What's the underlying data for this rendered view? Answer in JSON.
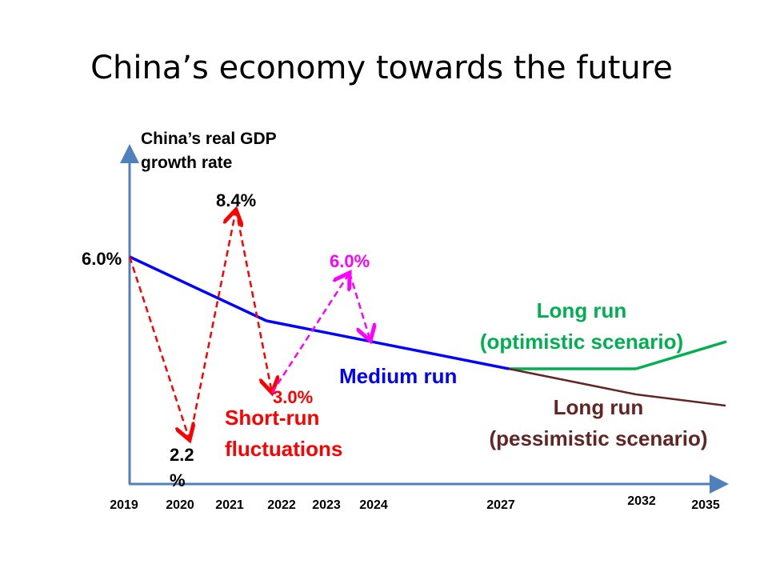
{
  "title": "China’s economy towards the future",
  "chart_data": {
    "type": "line",
    "title": "China’s economy towards the future",
    "ylabel": [
      "China’s real GDP",
      "growth rate"
    ],
    "xlabel": "",
    "x_ticks": [
      "2019",
      "2020",
      "2021",
      "2022",
      "2023",
      "2024",
      "2027",
      "2032",
      "2035"
    ],
    "grid": false,
    "series": [
      {
        "name": "Short-run fluctuations",
        "style": "dashed-arrows",
        "color": "#ff0000",
        "points": [
          {
            "x": "2019",
            "label": "6.0%"
          },
          {
            "x": "2020",
            "label": "2.2 %"
          },
          {
            "x": "2021",
            "label": "8.4%"
          },
          {
            "x": "2022",
            "label": "3.0%"
          }
        ]
      },
      {
        "style": "dashed-arrows",
        "color": "#ff00ff",
        "points": [
          {
            "x": "2022",
            "label": "3.0%"
          },
          {
            "x": "2023",
            "label": "6.0%"
          },
          {
            "x": "2024"
          }
        ]
      },
      {
        "name": "Medium run",
        "style": "solid",
        "color": "#0000ff",
        "points": [
          {
            "x": "2019",
            "label": "6.0%"
          },
          {
            "x": "2022"
          },
          {
            "x": "2027"
          }
        ]
      },
      {
        "name": "Long run (optimistic scenario)",
        "style": "solid",
        "color": "#00b050",
        "points": [
          {
            "x": "2027"
          },
          {
            "x": "2032"
          },
          {
            "x": "2035"
          }
        ]
      },
      {
        "name": "Long run (pessimistic scenario)",
        "style": "solid",
        "color": "#632523",
        "points": [
          {
            "x": "2027"
          },
          {
            "x": "2032"
          },
          {
            "x": "2035"
          }
        ]
      }
    ],
    "value_labels": {
      "start": "6.0%",
      "low_2020_line1": "2.2",
      "low_2020_line2": "%",
      "peak_2021": "8.4%",
      "low_2022": "3.0%",
      "peak_2023": "6.0%"
    },
    "series_labels": {
      "short_run": [
        "Short-run",
        "fluctuations"
      ],
      "medium_run": "Medium run",
      "optimistic": [
        "Long run",
        "(optimistic scenario)"
      ],
      "pessimistic": [
        "Long run",
        "(pessimistic scenario)"
      ]
    },
    "colors": {
      "axis": "#4f81bd",
      "short_run": "#ff0000",
      "rebound": "#ff00ff",
      "medium": "#0000ff",
      "optimistic": "#00b050",
      "pessimistic": "#632523"
    }
  }
}
